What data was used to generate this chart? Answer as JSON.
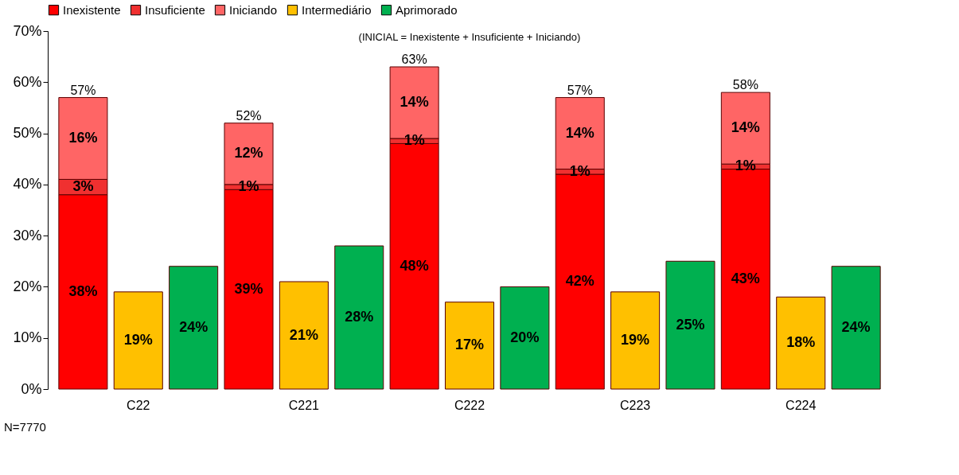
{
  "chart_data": {
    "type": "bar",
    "categories": [
      null,
      "C22",
      null,
      null,
      "C221",
      null,
      null,
      "C222",
      null,
      null,
      "C223",
      null,
      null,
      "C224",
      null
    ],
    "stacked": true,
    "series": [
      {
        "name": "Inexistente",
        "color": "#ff0000",
        "values": [
          38,
          null,
          null,
          39,
          null,
          null,
          48,
          null,
          null,
          42,
          null,
          null,
          43,
          null,
          null
        ],
        "value_labels": [
          "38%",
          null,
          null,
          "39%",
          null,
          null,
          "48%",
          null,
          null,
          "42%",
          null,
          null,
          "43%",
          null,
          null
        ]
      },
      {
        "name": "Insuficiente",
        "color": "#f03030",
        "values": [
          3,
          null,
          null,
          1,
          null,
          null,
          1,
          null,
          null,
          1,
          null,
          null,
          1,
          null,
          null
        ],
        "value_labels": [
          "3%",
          null,
          null,
          "1%",
          null,
          null,
          "1%",
          null,
          null,
          "1%",
          null,
          null,
          "1%",
          null,
          null
        ]
      },
      {
        "name": "Iniciando",
        "color": "#ff6565",
        "values": [
          16,
          null,
          null,
          12,
          null,
          null,
          14,
          null,
          null,
          14,
          null,
          null,
          14,
          null,
          null
        ],
        "value_labels": [
          "16%",
          null,
          null,
          "12%",
          null,
          null,
          "14%",
          null,
          null,
          "14%",
          null,
          null,
          "14%",
          null,
          null
        ]
      },
      {
        "name": "Intermediário",
        "color": "#ffc000",
        "values": [
          null,
          19,
          null,
          null,
          21,
          null,
          null,
          17,
          null,
          null,
          19,
          null,
          null,
          18,
          null
        ],
        "value_labels": [
          null,
          "19%",
          null,
          null,
          "21%",
          null,
          null,
          "17%",
          null,
          null,
          "19%",
          null,
          null,
          "18%",
          null
        ]
      },
      {
        "name": "Aprimorado",
        "color": "#00b050",
        "values": [
          null,
          null,
          24,
          null,
          null,
          28,
          null,
          null,
          20,
          null,
          null,
          25,
          null,
          null,
          24
        ],
        "value_labels": [
          null,
          null,
          "24%",
          null,
          null,
          "28%",
          null,
          null,
          "20%",
          null,
          null,
          "25%",
          null,
          null,
          "24%"
        ]
      }
    ],
    "totals": [
      "57%",
      null,
      null,
      "52%",
      null,
      null,
      "63%",
      null,
      null,
      "57%",
      null,
      null,
      "58%",
      null,
      null
    ],
    "ylim": [
      0,
      70
    ],
    "yticks": [
      {
        "value": 0,
        "label": "0%"
      },
      {
        "value": 10,
        "label": "10%"
      },
      {
        "value": 20,
        "label": "20%"
      },
      {
        "value": 30,
        "label": "30%"
      },
      {
        "value": 40,
        "label": "40%"
      },
      {
        "value": 50,
        "label": "50%"
      },
      {
        "value": 60,
        "label": "60%"
      },
      {
        "value": 70,
        "label": "70%"
      }
    ],
    "annotations": [
      "(INICIAL = Inexistente + Insuficiente + Iniciando)",
      "N=7770"
    ],
    "legend": "top",
    "grid": false
  }
}
